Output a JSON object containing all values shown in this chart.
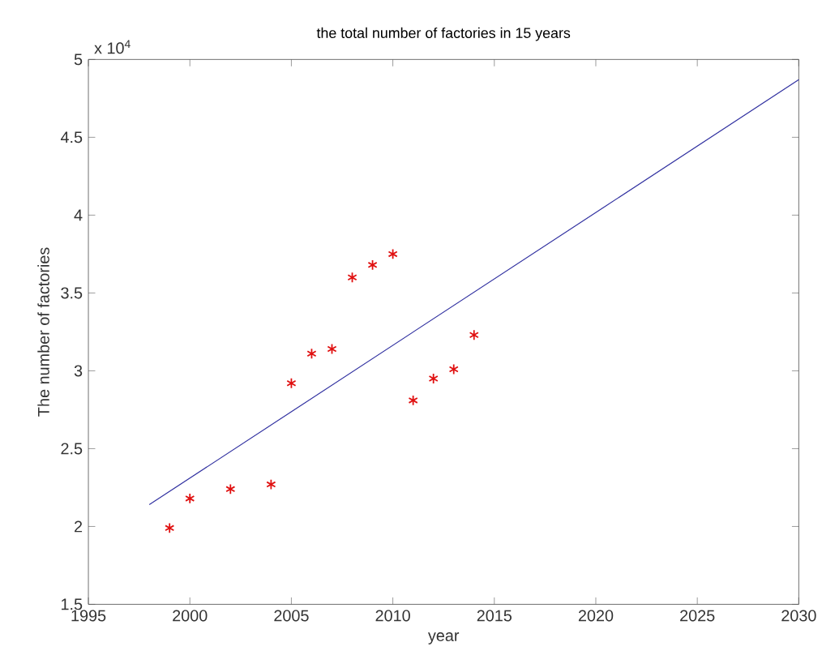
{
  "chart_data": {
    "type": "scatter",
    "title": "the total number of factories in 15 years",
    "xlabel": "year",
    "ylabel": "The number of factories",
    "annotations": [
      "x 10$^{4}$"
    ],
    "xlim": [
      1995,
      2030
    ],
    "xticks": [
      1995,
      2000,
      2005,
      2010,
      2015,
      2020,
      2025,
      2030
    ],
    "ylim": [
      1.5,
      5
    ],
    "yticks": [
      1.5,
      2,
      2.5,
      3,
      3.5,
      4,
      4.5,
      5
    ],
    "grid": false,
    "series": [
      {
        "marker": "cross",
        "color": "#e01010",
        "x": [
          1999,
          2000,
          2002,
          2004,
          2005,
          2006,
          2007,
          2008,
          2009,
          2010,
          2011,
          2012,
          2013,
          2014
        ],
        "values": [
          1.99,
          2.18,
          2.24,
          2.27,
          2.92,
          3.11,
          3.14,
          3.6,
          3.68,
          3.75,
          2.81,
          2.95,
          3.01,
          3.23
        ]
      },
      {
        "type": "line",
        "marker": "none",
        "line_style": "solid",
        "color": "#3030a0",
        "x": [
          1998,
          2030
        ],
        "values": [
          2.14,
          4.87
        ]
      }
    ]
  }
}
